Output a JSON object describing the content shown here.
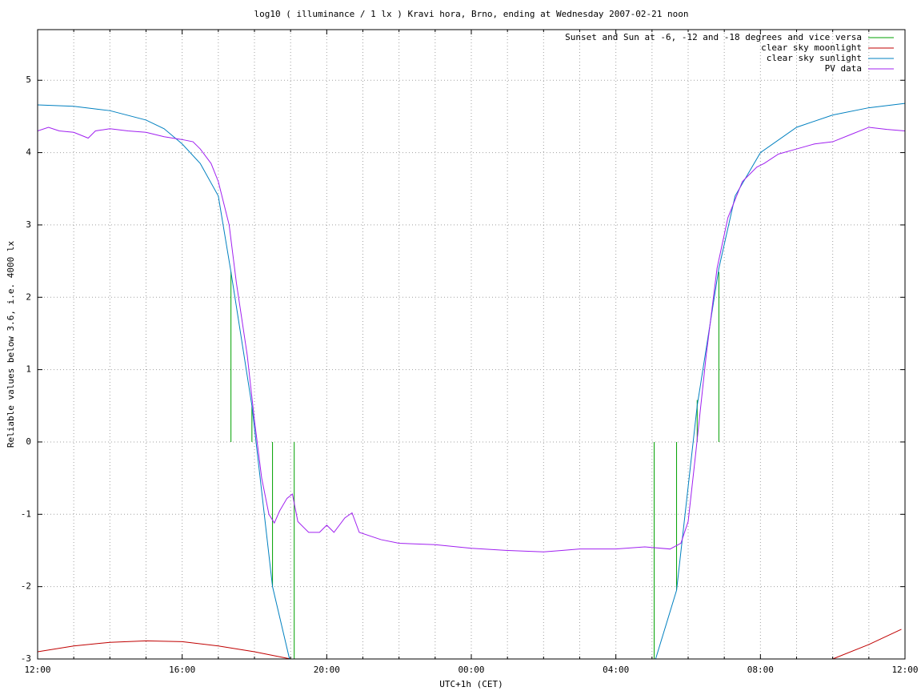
{
  "chart_data": {
    "type": "line",
    "title": "log10 ( illuminance / 1 lx ) Kravi hora, Brno, ending at Wednesday 2007-02-21 noon",
    "xlabel": "UTC+1h (CET)",
    "ylabel": "Reliable values below 3.6, i.e. 4000 lx",
    "xlim": [
      0,
      24
    ],
    "xticks": [
      {
        "value": 0,
        "label": "12:00"
      },
      {
        "value": 4,
        "label": "16:00"
      },
      {
        "value": 8,
        "label": "20:00"
      },
      {
        "value": 12,
        "label": "00:00"
      },
      {
        "value": 16,
        "label": "04:00"
      },
      {
        "value": 20,
        "label": "08:00"
      },
      {
        "value": 24,
        "label": "12:00"
      }
    ],
    "xminorticks": [
      1,
      2,
      3,
      5,
      6,
      7,
      9,
      10,
      11,
      13,
      14,
      15,
      17,
      18,
      19,
      21,
      22,
      23
    ],
    "ylim": [
      -3,
      5.7
    ],
    "yticks": [
      -3,
      -2,
      -1,
      0,
      1,
      2,
      3,
      4,
      5
    ],
    "grid": true,
    "legend": "top-right",
    "series": [
      {
        "name": "Sunset and Sun at -6, -12 and -18 degrees and vice versa",
        "color": "#00a000",
        "type": "impulses",
        "x": [
          5.35,
          5.93,
          6.5,
          7.1,
          17.06,
          17.68,
          18.25,
          18.85
        ],
        "values": [
          2.35,
          0.49,
          -2.0,
          -3.0,
          -3.0,
          -2.05,
          0.58,
          2.35
        ]
      },
      {
        "name": "clear sky moonlight",
        "color": "#c00000",
        "type": "line",
        "x": [
          0,
          1,
          2,
          3,
          4,
          5,
          6,
          7,
          12,
          22,
          23,
          23.9
        ],
        "values": [
          -2.9,
          -2.82,
          -2.77,
          -2.75,
          -2.76,
          -2.82,
          -2.9,
          -3.0,
          null,
          -3.0,
          -2.8,
          -2.59
        ]
      },
      {
        "name": "clear sky sunlight",
        "color": "#0080c0",
        "type": "line",
        "x": [
          0,
          1,
          2,
          3,
          3.5,
          4,
          4.5,
          5,
          5.35,
          5.93,
          6.5,
          6.97,
          12,
          17.1,
          17.68,
          18.25,
          18.85,
          19.3,
          20,
          21,
          22,
          23,
          24
        ],
        "values": [
          4.66,
          4.64,
          4.58,
          4.45,
          4.33,
          4.12,
          3.85,
          3.4,
          2.35,
          0.5,
          -2.0,
          -3.0,
          null,
          -3.0,
          -2.05,
          0.5,
          2.4,
          3.4,
          4.0,
          4.35,
          4.52,
          4.62,
          4.68
        ]
      },
      {
        "name": "PV data",
        "color": "#a020f0",
        "type": "line",
        "x": [
          0,
          0.3,
          0.6,
          1,
          1.4,
          1.6,
          2,
          2.5,
          3,
          3.5,
          4,
          4.3,
          4.5,
          4.8,
          5,
          5.3,
          5.5,
          5.8,
          6,
          6.2,
          6.4,
          6.55,
          6.7,
          6.9,
          7.05,
          7.2,
          7.5,
          7.8,
          8,
          8.2,
          8.5,
          8.7,
          8.9,
          9.5,
          10,
          11,
          12,
          13,
          14,
          14.5,
          15,
          16,
          16.8,
          17.5,
          17.8,
          18,
          18.2,
          18.5,
          18.8,
          19.1,
          19.5,
          19.9,
          20.1,
          20.5,
          21,
          21.5,
          22,
          22.5,
          23,
          23.5,
          24
        ],
        "values": [
          4.3,
          4.35,
          4.3,
          4.28,
          4.2,
          4.3,
          4.33,
          4.3,
          4.28,
          4.22,
          4.18,
          4.15,
          4.05,
          3.85,
          3.6,
          3.0,
          2.2,
          1.2,
          0.3,
          -0.5,
          -1.0,
          -1.12,
          -0.95,
          -0.78,
          -0.72,
          -1.1,
          -1.25,
          -1.25,
          -1.15,
          -1.25,
          -1.05,
          -0.98,
          -1.25,
          -1.35,
          -1.4,
          -1.42,
          -1.47,
          -1.5,
          -1.52,
          -1.5,
          -1.48,
          -1.48,
          -1.45,
          -1.48,
          -1.4,
          -1.1,
          -0.2,
          1.2,
          2.4,
          3.1,
          3.6,
          3.8,
          3.85,
          3.98,
          4.05,
          4.12,
          4.15,
          4.25,
          4.35,
          4.32,
          4.3
        ]
      }
    ]
  }
}
